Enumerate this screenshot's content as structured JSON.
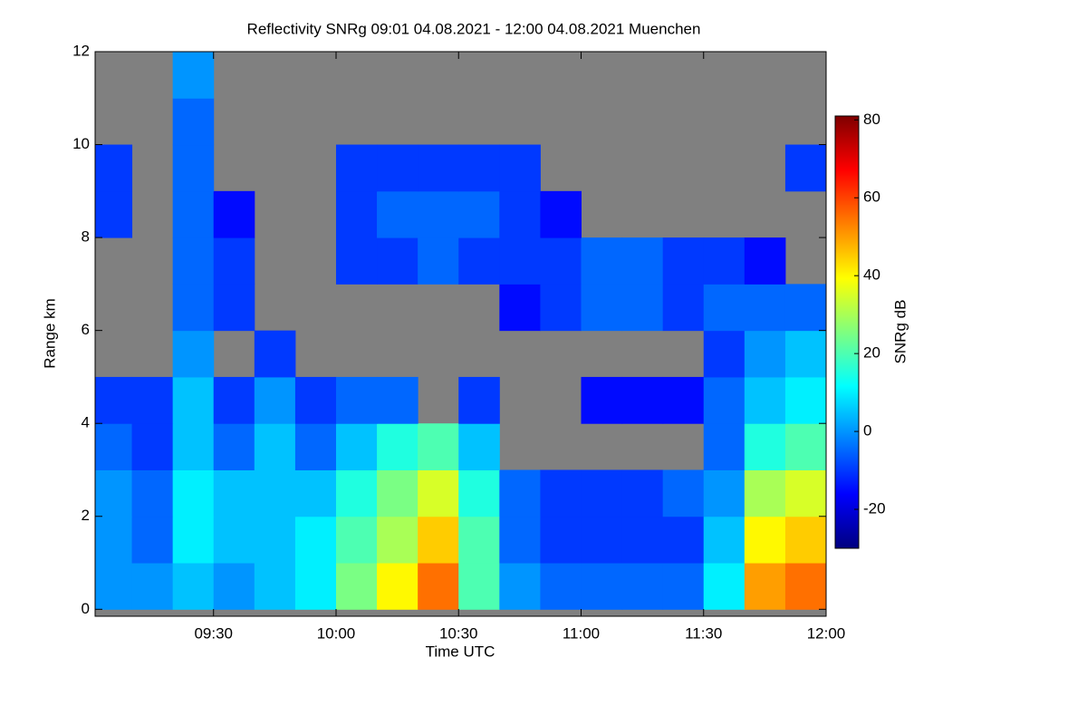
{
  "chart_data": {
    "type": "heatmap",
    "title": "Reflectivity SNRg   09:01 04.08.2021 - 12:00 04.08.2021 Muenchen",
    "x_label": "Time UTC",
    "y_label": "Range km",
    "colorbar_label": "SNRg dB",
    "xlim": [
      9.0167,
      12.0
    ],
    "xticks": [
      {
        "value": 9.5,
        "label": "09:30"
      },
      {
        "value": 10.0,
        "label": "10:00"
      },
      {
        "value": 10.5,
        "label": "10:30"
      },
      {
        "value": 11.0,
        "label": "11:00"
      },
      {
        "value": 11.5,
        "label": "11:30"
      },
      {
        "value": 12.0,
        "label": "12:00"
      }
    ],
    "ylim": [
      -0.15,
      12
    ],
    "yticks": [
      0,
      2,
      4,
      6,
      8,
      10,
      12
    ],
    "zlim": [
      -30,
      81
    ],
    "zticks": [
      -20,
      0,
      20,
      40,
      60,
      80
    ],
    "colorscale": [
      "#00007f",
      "#0000ff",
      "#0080ff",
      "#00ffff",
      "#7fff7f",
      "#ffff00",
      "#ff8000",
      "#ff0000",
      "#7f0000"
    ],
    "null_color": "#808080",
    "x": [
      9.0833,
      9.25,
      9.4167,
      9.5833,
      9.75,
      9.9167,
      10.0833,
      10.25,
      10.4167,
      10.5833,
      10.75,
      10.9167,
      11.0833,
      11.25,
      11.4167,
      11.5833,
      11.75,
      11.9167
    ],
    "y": [
      0.5,
      1.5,
      2.5,
      3.5,
      4.5,
      5.5,
      6.5,
      7.5,
      8.5,
      9.5,
      10.5,
      11.5
    ],
    "z": [
      [
        0,
        0,
        5,
        0,
        5,
        10,
        25,
        40,
        55,
        20,
        0,
        -5,
        -5,
        -5,
        -5,
        10,
        50,
        55
      ],
      [
        0,
        -5,
        10,
        5,
        5,
        10,
        20,
        30,
        45,
        20,
        -5,
        -10,
        -10,
        -10,
        -10,
        5,
        40,
        45
      ],
      [
        0,
        -5,
        10,
        5,
        5,
        5,
        15,
        25,
        35,
        15,
        -5,
        -10,
        -10,
        -10,
        -5,
        0,
        30,
        35
      ],
      [
        -5,
        -10,
        5,
        -5,
        5,
        -5,
        5,
        15,
        20,
        5,
        null,
        null,
        null,
        null,
        null,
        -5,
        15,
        20
      ],
      [
        -10,
        -10,
        5,
        -10,
        0,
        -10,
        -5,
        -5,
        null,
        -10,
        null,
        null,
        -15,
        -15,
        -15,
        -5,
        5,
        10
      ],
      [
        null,
        null,
        0,
        null,
        -10,
        null,
        null,
        null,
        null,
        null,
        null,
        null,
        null,
        null,
        null,
        -10,
        0,
        5
      ],
      [
        null,
        null,
        -5,
        -10,
        null,
        null,
        null,
        null,
        null,
        null,
        -15,
        -10,
        -5,
        -5,
        -10,
        -5,
        -5,
        -5
      ],
      [
        null,
        null,
        -5,
        -10,
        null,
        null,
        -10,
        -10,
        -5,
        -10,
        -10,
        -10,
        -5,
        -5,
        -10,
        -10,
        -15,
        null
      ],
      [
        -10,
        null,
        -5,
        -15,
        null,
        null,
        -10,
        -5,
        -5,
        -5,
        -10,
        -15,
        null,
        null,
        null,
        null,
        null,
        null
      ],
      [
        -10,
        null,
        -5,
        null,
        null,
        null,
        -10,
        -10,
        -10,
        -10,
        -10,
        null,
        null,
        null,
        null,
        null,
        null,
        -10
      ],
      [
        null,
        null,
        -5,
        null,
        null,
        null,
        null,
        null,
        null,
        null,
        null,
        null,
        null,
        null,
        null,
        null,
        null,
        null
      ],
      [
        null,
        null,
        0,
        null,
        null,
        null,
        null,
        null,
        null,
        null,
        null,
        null,
        null,
        null,
        null,
        null,
        null,
        null
      ]
    ]
  }
}
